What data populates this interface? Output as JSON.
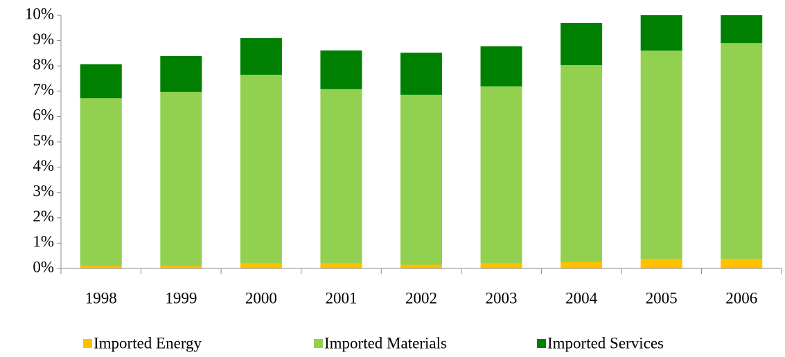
{
  "chart_data": {
    "type": "stacked-bar",
    "categories": [
      "1998",
      "1999",
      "2000",
      "2001",
      "2002",
      "2003",
      "2004",
      "2005",
      "2006"
    ],
    "series": [
      {
        "name": "Imported Energy",
        "color": "#ffc000",
        "values": [
          0.1,
          0.1,
          0.2,
          0.2,
          0.15,
          0.2,
          0.25,
          0.38,
          0.38
        ]
      },
      {
        "name": "Imported Materials",
        "color": "#92d050",
        "values": [
          6.62,
          6.87,
          7.45,
          6.88,
          6.71,
          6.99,
          7.78,
          8.22,
          8.52
        ]
      },
      {
        "name": "Imported Services",
        "color": "#008000",
        "values": [
          1.34,
          1.42,
          1.45,
          1.53,
          1.66,
          1.58,
          1.67,
          1.4,
          1.1
        ]
      }
    ],
    "ylim": [
      0,
      10
    ],
    "yticks": [
      {
        "value": 0,
        "label": "0%"
      },
      {
        "value": 1,
        "label": "1%"
      },
      {
        "value": 2,
        "label": "2%"
      },
      {
        "value": 3,
        "label": "3%"
      },
      {
        "value": 4,
        "label": "4%"
      },
      {
        "value": 5,
        "label": "5%"
      },
      {
        "value": 6,
        "label": "6%"
      },
      {
        "value": 7,
        "label": "7%"
      },
      {
        "value": 8,
        "label": "8%"
      },
      {
        "value": 9,
        "label": "9%"
      },
      {
        "value": 10,
        "label": "10%"
      }
    ],
    "legend": "bottom"
  }
}
